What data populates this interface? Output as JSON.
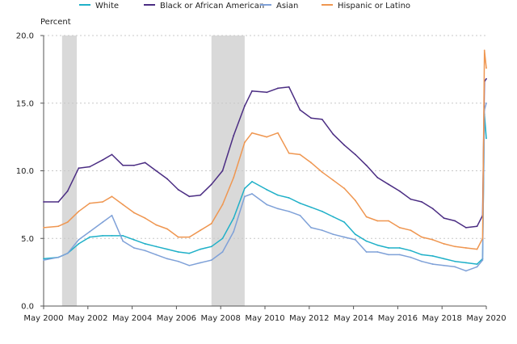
{
  "chart_data": {
    "type": "line",
    "ylabel": "Percent",
    "ylim": [
      0,
      20
    ],
    "y_ticks": [
      "0.0",
      "5.0",
      "10.0",
      "15.0",
      "20.0"
    ],
    "x_ticks": [
      "May 2000",
      "May 2002",
      "May 2004",
      "May 2006",
      "May 2008",
      "May 2010",
      "May 2012",
      "May 2014",
      "May 2016",
      "May 2018",
      "May 2020"
    ],
    "grid": true,
    "legend_position": "top",
    "recessions": [
      [
        "Mar 2001",
        "Nov 2001"
      ],
      [
        "Dec 2007",
        "Jun 2009"
      ]
    ],
    "x": [
      "May 2000",
      "Jan 2001",
      "Jun 2001",
      "Dec 2001",
      "Jun 2002",
      "Jan 2003",
      "Jun 2003",
      "Dec 2003",
      "Jun 2004",
      "Dec 2004",
      "Jun 2005",
      "Dec 2005",
      "Jun 2006",
      "Dec 2006",
      "Jun 2007",
      "Dec 2007",
      "Jun 2008",
      "Dec 2008",
      "Jun 2009",
      "Oct 2009",
      "Jun 2010",
      "Dec 2010",
      "Jun 2011",
      "Dec 2011",
      "Jun 2012",
      "Dec 2012",
      "Jun 2013",
      "Dec 2013",
      "Jun 2014",
      "Dec 2014",
      "Jun 2015",
      "Dec 2015",
      "Jun 2016",
      "Dec 2016",
      "Jun 2017",
      "Dec 2017",
      "Jun 2018",
      "Dec 2018",
      "Jun 2019",
      "Dec 2019",
      "Mar 2020",
      "Apr 2020",
      "May 2020"
    ],
    "series": [
      {
        "name": "White",
        "color": "#1fb0c8",
        "values": [
          3.5,
          3.6,
          3.9,
          4.6,
          5.1,
          5.2,
          5.2,
          5.2,
          4.9,
          4.6,
          4.4,
          4.2,
          4.0,
          3.9,
          4.2,
          4.4,
          5.0,
          6.5,
          8.7,
          9.2,
          8.6,
          8.2,
          8.0,
          7.6,
          7.3,
          7.0,
          6.6,
          6.2,
          5.3,
          4.8,
          4.5,
          4.3,
          4.3,
          4.1,
          3.8,
          3.7,
          3.5,
          3.3,
          3.2,
          3.1,
          3.5,
          14.2,
          12.4
        ]
      },
      {
        "name": "Black or African American",
        "color": "#4b2d83",
        "values": [
          7.7,
          7.7,
          8.5,
          10.2,
          10.3,
          10.8,
          11.2,
          10.4,
          10.4,
          10.6,
          10.0,
          9.4,
          8.6,
          8.1,
          8.2,
          9.0,
          10.0,
          12.6,
          14.8,
          15.9,
          15.8,
          16.1,
          16.2,
          14.5,
          13.9,
          13.8,
          12.7,
          11.9,
          11.2,
          10.4,
          9.5,
          9.0,
          8.5,
          7.9,
          7.7,
          7.2,
          6.5,
          6.3,
          5.8,
          5.9,
          6.7,
          16.6,
          16.8
        ]
      },
      {
        "name": "Asian",
        "color": "#7fa1d8",
        "values": [
          3.4,
          3.6,
          3.9,
          4.9,
          5.5,
          6.2,
          6.7,
          4.8,
          4.3,
          4.1,
          3.8,
          3.5,
          3.3,
          3.0,
          3.2,
          3.4,
          4.0,
          5.5,
          8.1,
          8.3,
          7.5,
          7.2,
          7.0,
          6.7,
          5.8,
          5.6,
          5.3,
          5.1,
          4.9,
          4.0,
          4.0,
          3.8,
          3.8,
          3.6,
          3.3,
          3.1,
          3.0,
          2.9,
          2.6,
          2.9,
          3.4,
          14.5,
          15.0
        ]
      },
      {
        "name": "Hispanic or Latino",
        "color": "#ef9650",
        "values": [
          5.8,
          5.9,
          6.2,
          7.0,
          7.6,
          7.7,
          8.1,
          7.5,
          6.9,
          6.5,
          6.0,
          5.7,
          5.1,
          5.1,
          5.6,
          6.1,
          7.5,
          9.5,
          12.1,
          12.8,
          12.5,
          12.8,
          11.3,
          11.2,
          10.6,
          9.9,
          9.3,
          8.7,
          7.8,
          6.6,
          6.3,
          6.3,
          5.8,
          5.6,
          5.1,
          4.9,
          4.6,
          4.4,
          4.3,
          4.2,
          5.0,
          18.9,
          17.6
        ]
      }
    ]
  }
}
